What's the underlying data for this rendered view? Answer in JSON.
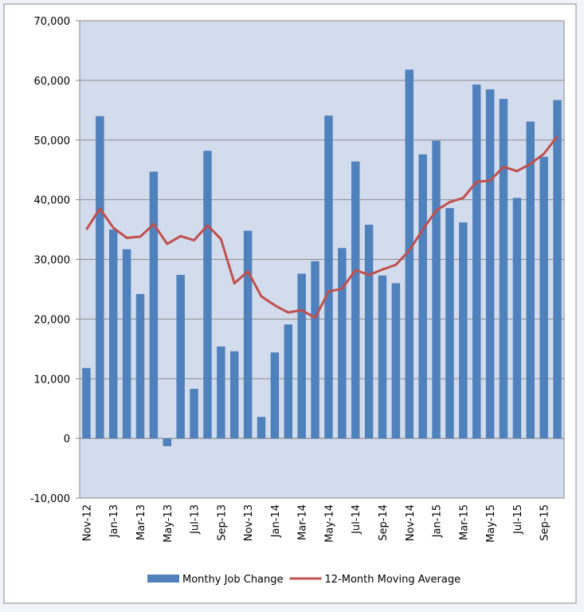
{
  "chart_data": {
    "type": "bar-line",
    "categories": [
      "Nov-12",
      null,
      "Jan-13",
      null,
      "Mar-13",
      null,
      "May-13",
      null,
      "Jul-13",
      null,
      "Sep-13",
      null,
      "Nov-13",
      null,
      "Jan-14",
      null,
      "Mar-14",
      null,
      "May-14",
      null,
      "Jul-14",
      null,
      "Sep-14",
      null,
      "Nov-14",
      null,
      "Jan-15",
      null,
      "Mar-15",
      null,
      "May-15",
      null,
      "Jul-15",
      null,
      "Sep-15",
      null
    ],
    "series": [
      {
        "name": "Monthy Job Change",
        "type": "bar",
        "color": "#4f81bd",
        "values": [
          11800,
          54000,
          35000,
          31700,
          24200,
          44700,
          -1300,
          27400,
          8300,
          48200,
          15400,
          14600,
          34800,
          3600,
          14400,
          19100,
          27600,
          29700,
          54100,
          31900,
          46400,
          35800,
          27300,
          26000,
          61800,
          47600,
          49900,
          38600,
          36200,
          59300,
          58500,
          56900,
          40300,
          53100,
          47200,
          56700
        ]
      },
      {
        "name": "12-Month Moving Average",
        "type": "line",
        "color": "#c0504d",
        "values": [
          35000,
          38500,
          35300,
          33600,
          33800,
          35900,
          32600,
          33900,
          33200,
          35700,
          33400,
          26000,
          28000,
          23800,
          22300,
          21100,
          21500,
          20200,
          24600,
          25100,
          28200,
          27400,
          28300,
          29100,
          31500,
          35000,
          38200,
          39600,
          40300,
          43000,
          43200,
          45500,
          44800,
          46000,
          47700,
          50600
        ]
      }
    ],
    "ylim": [
      -10000,
      70000
    ],
    "yticks": [
      {
        "value": -10000,
        "label": "-10,000"
      },
      0,
      {
        "value": 10000,
        "label": "10,000"
      },
      {
        "value": 20000,
        "label": "20,000"
      },
      {
        "value": 30000,
        "label": "30,000"
      },
      {
        "value": 40000,
        "label": "40,000"
      },
      {
        "value": 50000,
        "label": "50,000"
      },
      {
        "value": 60000,
        "label": "60,000"
      },
      {
        "value": 70000,
        "label": "70,000"
      }
    ],
    "grid": true,
    "legend": "bottom"
  }
}
